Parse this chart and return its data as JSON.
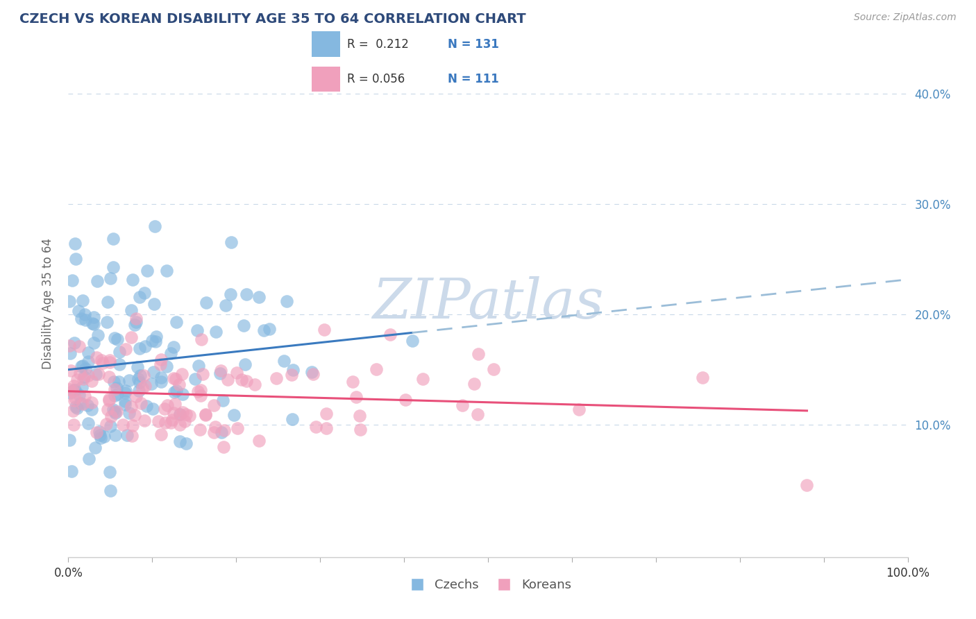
{
  "title": "CZECH VS KOREAN DISABILITY AGE 35 TO 64 CORRELATION CHART",
  "source_text": "Source: ZipAtlas.com",
  "ylabel": "Disability Age 35 to 64",
  "xlim": [
    0.0,
    1.0
  ],
  "ylim": [
    -0.02,
    0.44
  ],
  "czech_R": 0.212,
  "czech_N": 131,
  "korean_R": 0.056,
  "korean_N": 111,
  "czech_color": "#85b8e0",
  "korean_color": "#f0a0bc",
  "trend_czech_color": "#3a7abf",
  "trend_czech_dash_color": "#9bbdd8",
  "trend_korean_color": "#e8507a",
  "watermark_color": "#ccdaea",
  "background_color": "#ffffff",
  "grid_color": "#c8d8e8",
  "title_color": "#2e4a7a",
  "ytick_color": "#4a8abf",
  "xtick_color": "#333333",
  "legend_R_color": "#3a78bf",
  "legend_N_color": "#3a78bf",
  "czech_scatter_alpha": 0.65,
  "korean_scatter_alpha": 0.65,
  "scatter_size": 180
}
